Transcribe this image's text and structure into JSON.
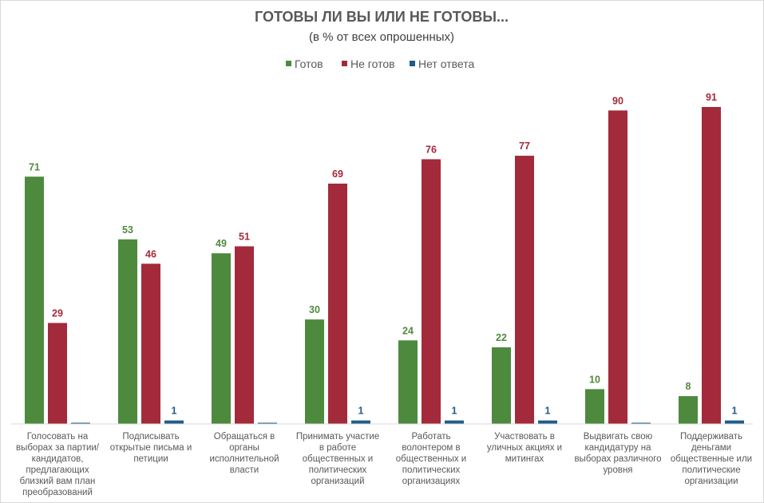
{
  "chart_data": {
    "type": "bar",
    "title": "ГОТОВЫ ЛИ ВЫ ИЛИ НЕ ГОТОВЫ...",
    "subtitle": "(в % от всех опрошенных)",
    "legend_position": "top",
    "grid": false,
    "ylim": [
      0,
      91
    ],
    "categories": [
      "Голосовать на выборах за партии/кандидатов, предлагающих близкий вам план преобразований",
      "Подписывать открытые письма и петиции",
      "Обращаться в органы исполнительной власти",
      "Принимать участие в работе общественных и политических организаций",
      "Работать волонтером в общественных и политических организациях",
      "Участвовать в уличных акциях и митингах",
      "Выдвигать свою кандидатуру на выборах различного уровня",
      "Поддерживать деньгами общественные или политические организации"
    ],
    "series": [
      {
        "name": "Готов",
        "color": "#4e8a3e",
        "values": [
          71,
          53,
          49,
          30,
          24,
          22,
          10,
          8
        ]
      },
      {
        "name": "Не готов",
        "color": "#a32a3a",
        "values": [
          29,
          46,
          51,
          69,
          76,
          77,
          90,
          91
        ]
      },
      {
        "name": "Нет ответа",
        "color": "#1f5c8a",
        "values": [
          0,
          1,
          0,
          1,
          1,
          1,
          0,
          1
        ]
      }
    ]
  }
}
